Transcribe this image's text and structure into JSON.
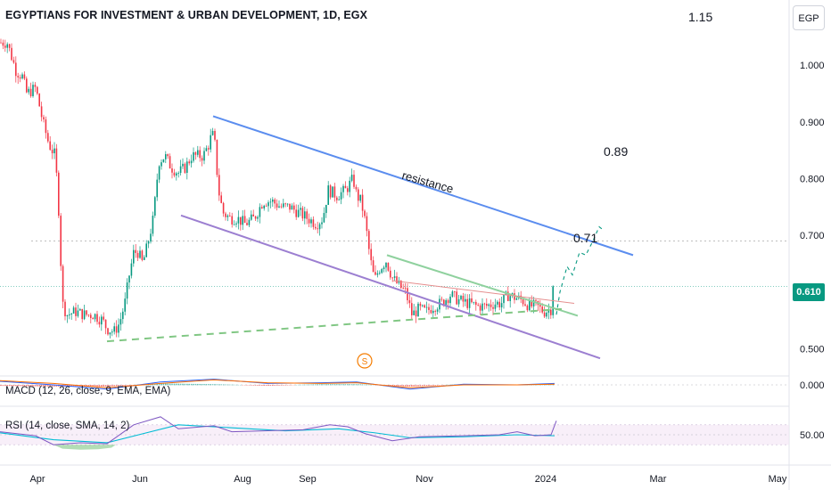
{
  "header": {
    "title": "EGYPTIANS FOR INVESTMENT & URBAN DEVELOPMENT, 1D, EGX",
    "top_price": "1.15",
    "currency": "EGP"
  },
  "price_tag": "0.610",
  "annotations": {
    "resistance": "resistance",
    "target1": "0.71",
    "target2": "0.89",
    "pattern_badge": "S"
  },
  "indicators": {
    "macd_label": "MACD (12, 26, close, 9, EMA, EMA)",
    "macd_axis_label": "0.000",
    "rsi_label": "RSI (14, close, SMA, 14, 2)",
    "rsi_axis_label": "50.00"
  },
  "colors": {
    "up": "#089981",
    "down": "#f23645",
    "resistance": "#5b8def",
    "support": "#9c7fd1",
    "green_line": "#8fd19e",
    "dashed": "#81c784",
    "red_line": "#e58e8e"
  },
  "chart_data": {
    "type": "candlestick",
    "title": "EGYPTIANS FOR INVESTMENT & URBAN DEVELOPMENT, 1D, EGX",
    "x_ticks": [
      "Apr",
      "Jun",
      "Aug",
      "Sep",
      "Nov",
      "2024",
      "Mar",
      "May"
    ],
    "y_ticks": [
      0.5,
      0.6,
      0.7,
      0.8,
      0.9,
      1.0
    ],
    "y_tick_labels": [
      "0.500",
      "",
      "0.700",
      "0.800",
      "0.900",
      "1.000"
    ],
    "y_range": [
      0.455,
      1.06
    ],
    "last_price": 0.61,
    "price_path": [
      [
        0,
        1.04
      ],
      [
        8,
        1.04
      ],
      [
        18,
        0.99
      ],
      [
        25,
        0.98
      ],
      [
        30,
        0.95
      ],
      [
        40,
        0.96
      ],
      [
        48,
        0.9
      ],
      [
        55,
        0.86
      ],
      [
        62,
        0.84
      ],
      [
        66,
        0.74
      ],
      [
        70,
        0.58
      ],
      [
        75,
        0.56
      ],
      [
        85,
        0.565
      ],
      [
        95,
        0.56
      ],
      [
        105,
        0.56
      ],
      [
        115,
        0.55
      ],
      [
        120,
        0.535
      ],
      [
        128,
        0.53
      ],
      [
        134,
        0.545
      ],
      [
        140,
        0.58
      ],
      [
        145,
        0.63
      ],
      [
        150,
        0.67
      ],
      [
        155,
        0.67
      ],
      [
        160,
        0.65
      ],
      [
        165,
        0.68
      ],
      [
        172,
        0.73
      ],
      [
        178,
        0.83
      ],
      [
        185,
        0.84
      ],
      [
        192,
        0.82
      ],
      [
        200,
        0.81
      ],
      [
        208,
        0.82
      ],
      [
        215,
        0.84
      ],
      [
        222,
        0.84
      ],
      [
        228,
        0.84
      ],
      [
        234,
        0.86
      ],
      [
        238,
        0.88
      ],
      [
        241,
        0.86
      ],
      [
        245,
        0.78
      ],
      [
        250,
        0.74
      ],
      [
        258,
        0.73
      ],
      [
        266,
        0.73
      ],
      [
        275,
        0.72
      ],
      [
        285,
        0.73
      ],
      [
        295,
        0.76
      ],
      [
        305,
        0.76
      ],
      [
        315,
        0.75
      ],
      [
        325,
        0.75
      ],
      [
        335,
        0.74
      ],
      [
        345,
        0.73
      ],
      [
        355,
        0.72
      ],
      [
        362,
        0.73
      ],
      [
        368,
        0.78
      ],
      [
        378,
        0.77
      ],
      [
        388,
        0.78
      ],
      [
        396,
        0.8
      ],
      [
        400,
        0.77
      ],
      [
        405,
        0.76
      ],
      [
        410,
        0.72
      ],
      [
        415,
        0.66
      ],
      [
        420,
        0.62
      ],
      [
        425,
        0.64
      ],
      [
        433,
        0.655
      ],
      [
        440,
        0.625
      ],
      [
        448,
        0.61
      ],
      [
        455,
        0.6
      ],
      [
        462,
        0.56
      ],
      [
        470,
        0.57
      ],
      [
        478,
        0.565
      ],
      [
        486,
        0.575
      ],
      [
        495,
        0.58
      ],
      [
        505,
        0.595
      ],
      [
        515,
        0.585
      ],
      [
        525,
        0.58
      ],
      [
        535,
        0.575
      ],
      [
        545,
        0.575
      ],
      [
        555,
        0.58
      ],
      [
        562,
        0.58
      ],
      [
        570,
        0.595
      ],
      [
        578,
        0.59
      ],
      [
        586,
        0.585
      ],
      [
        594,
        0.575
      ],
      [
        602,
        0.575
      ],
      [
        610,
        0.565
      ],
      [
        618,
        0.57
      ],
      [
        622,
        0.61
      ]
    ],
    "lines": [
      {
        "name": "resistance",
        "from": [
          239,
          0.91
        ],
        "to": [
          710,
          0.665
        ]
      },
      {
        "name": "support",
        "from": [
          203,
          0.735
        ],
        "to": [
          673,
          0.483
        ]
      },
      {
        "name": "wedge_upper",
        "from": [
          434,
          0.665
        ],
        "to": [
          648,
          0.558
        ]
      },
      {
        "name": "neckline",
        "from": [
          440,
          0.62
        ],
        "to": [
          644,
          0.58
        ]
      },
      {
        "name": "rising_support",
        "from": [
          120,
          0.513
        ],
        "to": [
          630,
          0.57
        ],
        "dashed": true
      }
    ],
    "projection": [
      [
        624,
        0.56
      ],
      [
        628,
        0.6
      ],
      [
        636,
        0.645
      ],
      [
        642,
        0.63
      ],
      [
        650,
        0.67
      ],
      [
        657,
        0.665
      ],
      [
        665,
        0.69
      ],
      [
        672,
        0.715
      ],
      [
        676,
        0.71
      ]
    ],
    "macd": {
      "macd_line": [
        [
          0,
          0.05
        ],
        [
          60,
          0.0
        ],
        [
          120,
          -0.06
        ],
        [
          180,
          0.04
        ],
        [
          240,
          0.08
        ],
        [
          300,
          0.02
        ],
        [
          360,
          0.03
        ],
        [
          400,
          0.04
        ],
        [
          460,
          -0.06
        ],
        [
          520,
          0.01
        ],
        [
          580,
          0.0
        ],
        [
          622,
          0.02
        ]
      ],
      "signal_line": [
        [
          0,
          0.06
        ],
        [
          60,
          0.02
        ],
        [
          120,
          -0.04
        ],
        [
          180,
          0.02
        ],
        [
          240,
          0.07
        ],
        [
          300,
          0.03
        ],
        [
          360,
          0.02
        ],
        [
          400,
          0.03
        ],
        [
          460,
          -0.04
        ],
        [
          520,
          0.0
        ],
        [
          580,
          0.0
        ],
        [
          622,
          0.01
        ]
      ]
    },
    "rsi": {
      "rsi_line": [
        [
          0,
          56
        ],
        [
          40,
          48
        ],
        [
          60,
          30
        ],
        [
          90,
          34
        ],
        [
          120,
          32
        ],
        [
          150,
          70
        ],
        [
          180,
          86
        ],
        [
          200,
          62
        ],
        [
          240,
          68
        ],
        [
          260,
          56
        ],
        [
          300,
          58
        ],
        [
          340,
          60
        ],
        [
          370,
          70
        ],
        [
          390,
          66
        ],
        [
          410,
          52
        ],
        [
          440,
          38
        ],
        [
          470,
          46
        ],
        [
          520,
          48
        ],
        [
          560,
          50
        ],
        [
          580,
          56
        ],
        [
          600,
          48
        ],
        [
          618,
          50
        ],
        [
          624,
          78
        ]
      ],
      "rsi_ma": [
        [
          0,
          54
        ],
        [
          60,
          40
        ],
        [
          120,
          34
        ],
        [
          160,
          52
        ],
        [
          200,
          70
        ],
        [
          260,
          64
        ],
        [
          320,
          58
        ],
        [
          380,
          62
        ],
        [
          420,
          54
        ],
        [
          460,
          44
        ],
        [
          520,
          46
        ],
        [
          580,
          50
        ],
        [
          622,
          48
        ]
      ],
      "upper_band": 70,
      "lower_band": 30
    }
  }
}
